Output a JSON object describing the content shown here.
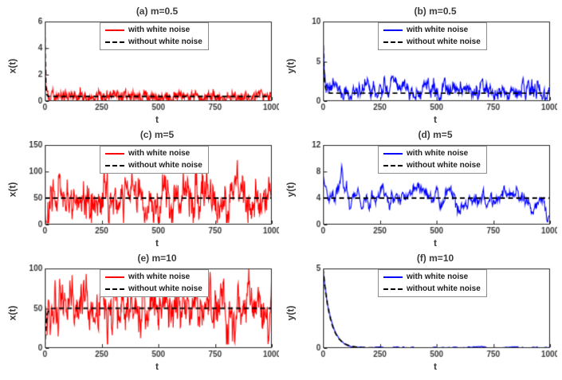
{
  "figure": {
    "background": "#ffffff",
    "axis_color": "#262626",
    "text_color": "#3c3c3c"
  },
  "chart_data": [
    {
      "type": "line",
      "title": "(a) m=0.5",
      "xlabel": "t",
      "ylabel": "x(t)",
      "xlim": [
        0,
        1000
      ],
      "ylim": [
        0,
        6
      ],
      "xticks": [
        0,
        250,
        500,
        750,
        1000
      ],
      "yticks": [
        0,
        2,
        4,
        6
      ],
      "grid": false,
      "legend_position": "top-center",
      "series": [
        {
          "name": "with white noise",
          "color": "#ff0000",
          "style": "solid",
          "model": {
            "init": 6,
            "eq": 0.35,
            "rate": 0.5,
            "sigma": 0.22,
            "min": 0.03,
            "max": 6,
            "seed": 101
          }
        },
        {
          "name": "without white noise",
          "color": "#000000",
          "style": "dashed",
          "model": {
            "init": 6,
            "eq": 0.35,
            "rate": 0.5,
            "sigma": 0,
            "min": 0,
            "max": 6,
            "seed": 1
          }
        }
      ]
    },
    {
      "type": "line",
      "title": "(b) m=0.5",
      "xlabel": "t",
      "ylabel": "y(t)",
      "xlim": [
        0,
        1000
      ],
      "ylim": [
        0,
        10
      ],
      "xticks": [
        0,
        250,
        500,
        750,
        1000
      ],
      "yticks": [
        0,
        5,
        10
      ],
      "grid": false,
      "legend_position": "top-center",
      "series": [
        {
          "name": "with white noise",
          "color": "#0000ff",
          "style": "solid",
          "model": {
            "init": 8,
            "eq": 1.4,
            "rate": 0.25,
            "sigma": 0.45,
            "min": 0.2,
            "max": 10,
            "seed": 202
          }
        },
        {
          "name": "without white noise",
          "color": "#000000",
          "style": "dashed",
          "model": {
            "init": 8,
            "eq": 1.0,
            "rate": 0.3,
            "sigma": 0,
            "min": 0,
            "max": 10,
            "seed": 2
          }
        }
      ]
    },
    {
      "type": "line",
      "title": "(c) m=5",
      "xlabel": "t",
      "ylabel": "x(t)",
      "xlim": [
        0,
        1000
      ],
      "ylim": [
        0,
        150
      ],
      "xticks": [
        0,
        250,
        500,
        750,
        1000
      ],
      "yticks": [
        0,
        50,
        100,
        150
      ],
      "grid": false,
      "legend_position": "top-center",
      "series": [
        {
          "name": "with white noise",
          "color": "#ff0000",
          "style": "solid",
          "model": {
            "init": 5,
            "eq": 50,
            "rate": 0.3,
            "sigma": 16,
            "min": 3,
            "max": 148,
            "seed": 303
          }
        },
        {
          "name": "without white noise",
          "color": "#000000",
          "style": "dashed",
          "model": {
            "init": 50,
            "eq": 50,
            "rate": 0.3,
            "sigma": 0,
            "min": 0,
            "max": 150,
            "seed": 3
          }
        }
      ]
    },
    {
      "type": "line",
      "title": "(d) m=5",
      "xlabel": "t",
      "ylabel": "y(t)",
      "xlim": [
        0,
        1000
      ],
      "ylim": [
        0,
        12
      ],
      "xticks": [
        0,
        250,
        500,
        750,
        1000
      ],
      "yticks": [
        0,
        4,
        8,
        12
      ],
      "grid": false,
      "legend_position": "top-center",
      "series": [
        {
          "name": "with white noise",
          "color": "#0000ff",
          "style": "solid",
          "model": {
            "init": 6,
            "eq": 4,
            "rate": 0.04,
            "sigma": 0.45,
            "min": 0.4,
            "max": 11.5,
            "seed": 404
          }
        },
        {
          "name": "without white noise",
          "color": "#000000",
          "style": "dashed",
          "model": {
            "init": 4,
            "eq": 4,
            "rate": 0.3,
            "sigma": 0,
            "min": 0,
            "max": 12,
            "seed": 4
          }
        }
      ]
    },
    {
      "type": "line",
      "title": "(e) m=10",
      "xlabel": "t",
      "ylabel": "x(t)",
      "xlim": [
        0,
        1000
      ],
      "ylim": [
        0,
        100
      ],
      "xticks": [
        0,
        250,
        500,
        750,
        1000
      ],
      "yticks": [
        0,
        50,
        100
      ],
      "grid": false,
      "legend_position": "top-center",
      "series": [
        {
          "name": "with white noise",
          "color": "#ff0000",
          "style": "solid",
          "model": {
            "init": 2,
            "eq": 50,
            "rate": 0.25,
            "sigma": 13,
            "min": 5,
            "max": 99,
            "seed": 505
          }
        },
        {
          "name": "without white noise",
          "color": "#000000",
          "style": "dashed",
          "model": {
            "init": 1,
            "eq": 50,
            "rate": 0.25,
            "sigma": 0,
            "min": 0,
            "max": 100,
            "seed": 5
          }
        }
      ]
    },
    {
      "type": "line",
      "title": "(f) m=10",
      "xlabel": "t",
      "ylabel": "y(t)",
      "xlim": [
        0,
        1000
      ],
      "ylim": [
        0,
        5
      ],
      "xticks": [
        0,
        250,
        500,
        750,
        1000
      ],
      "yticks": [
        0,
        5
      ],
      "grid": false,
      "legend_position": "top-center",
      "series": [
        {
          "name": "with white noise",
          "color": "#0000ff",
          "style": "solid",
          "model": {
            "init": 5,
            "eq": 0.02,
            "rate": 0.05,
            "sigma": 0.012,
            "min": 0,
            "max": 5,
            "seed": 606
          }
        },
        {
          "name": "without white noise",
          "color": "#000000",
          "style": "dashed",
          "model": {
            "init": 5,
            "eq": 0.01,
            "rate": 0.05,
            "sigma": 0,
            "min": 0,
            "max": 5,
            "seed": 6
          }
        }
      ]
    }
  ]
}
